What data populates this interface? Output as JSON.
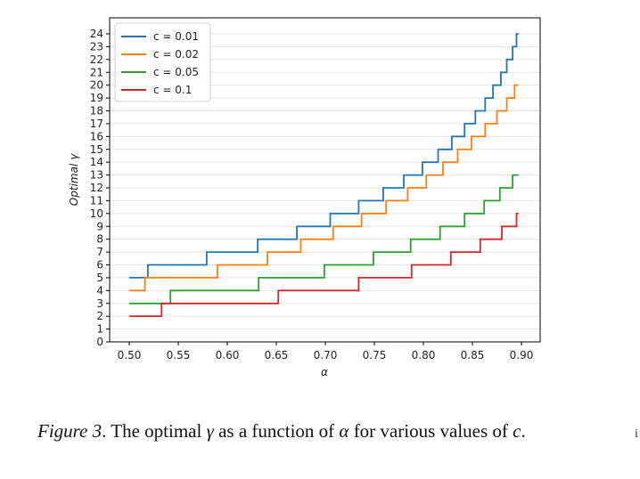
{
  "chart_data": {
    "type": "line",
    "title": "",
    "xlabel": "α",
    "ylabel": "Optimal γ",
    "xlim": [
      0.5,
      0.9
    ],
    "ylim": [
      0,
      24
    ],
    "xticks": [
      0.5,
      0.55,
      0.6,
      0.65,
      0.7,
      0.75,
      0.8,
      0.85,
      0.9
    ],
    "xtick_labels": [
      "0.50",
      "0.55",
      "0.60",
      "0.65",
      "0.70",
      "0.75",
      "0.80",
      "0.85",
      "0.90"
    ],
    "yticks": [
      0,
      1,
      2,
      3,
      4,
      5,
      6,
      7,
      8,
      9,
      10,
      11,
      12,
      13,
      14,
      15,
      16,
      17,
      18,
      19,
      20,
      21,
      22,
      23,
      24
    ],
    "grid": "horizontal",
    "legend_position": "top-left",
    "series": [
      {
        "name": "c = 0.01",
        "color": "#1f77b4",
        "steps": [
          [
            0.5,
            5
          ],
          [
            0.519,
            6
          ],
          [
            0.579,
            7
          ],
          [
            0.631,
            8
          ],
          [
            0.671,
            9
          ],
          [
            0.705,
            10
          ],
          [
            0.734,
            11
          ],
          [
            0.759,
            12
          ],
          [
            0.78,
            13
          ],
          [
            0.799,
            14
          ],
          [
            0.815,
            15
          ],
          [
            0.829,
            16
          ],
          [
            0.842,
            17
          ],
          [
            0.853,
            18
          ],
          [
            0.863,
            19
          ],
          [
            0.871,
            20
          ],
          [
            0.879,
            21
          ],
          [
            0.885,
            22
          ],
          [
            0.891,
            23
          ],
          [
            0.895,
            24
          ]
        ],
        "x_end": 0.897
      },
      {
        "name": "c = 0.02",
        "color": "#ff7f0e",
        "steps": [
          [
            0.5,
            4
          ],
          [
            0.516,
            5
          ],
          [
            0.59,
            6
          ],
          [
            0.641,
            7
          ],
          [
            0.675,
            8
          ],
          [
            0.708,
            9
          ],
          [
            0.737,
            10
          ],
          [
            0.762,
            11
          ],
          [
            0.784,
            12
          ],
          [
            0.803,
            13
          ],
          [
            0.82,
            14
          ],
          [
            0.835,
            15
          ],
          [
            0.849,
            16
          ],
          [
            0.863,
            17
          ],
          [
            0.875,
            18
          ],
          [
            0.885,
            19
          ],
          [
            0.893,
            20
          ]
        ],
        "x_end": 0.897
      },
      {
        "name": "c = 0.05",
        "color": "#2ca02c",
        "steps": [
          [
            0.5,
            3
          ],
          [
            0.542,
            4
          ],
          [
            0.632,
            5
          ],
          [
            0.699,
            6
          ],
          [
            0.749,
            7
          ],
          [
            0.787,
            8
          ],
          [
            0.817,
            9
          ],
          [
            0.842,
            10
          ],
          [
            0.862,
            11
          ],
          [
            0.878,
            12
          ],
          [
            0.891,
            13
          ]
        ],
        "x_end": 0.897
      },
      {
        "name": "c = 0.1",
        "color": "#d62728",
        "steps": [
          [
            0.5,
            2
          ],
          [
            0.533,
            3
          ],
          [
            0.652,
            4
          ],
          [
            0.734,
            5
          ],
          [
            0.788,
            6
          ],
          [
            0.828,
            7
          ],
          [
            0.858,
            8
          ],
          [
            0.88,
            9
          ],
          [
            0.895,
            10
          ]
        ],
        "x_end": 0.897
      }
    ]
  },
  "caption": {
    "label": "Figure 3",
    "sep": ".",
    "text_part1": " The optimal ",
    "gamma": "γ",
    "text_part2": " as a function of ",
    "alpha": "α",
    "text_part3": " for various values of ",
    "c": "c",
    "text_end": "."
  },
  "edge_mark": "i"
}
